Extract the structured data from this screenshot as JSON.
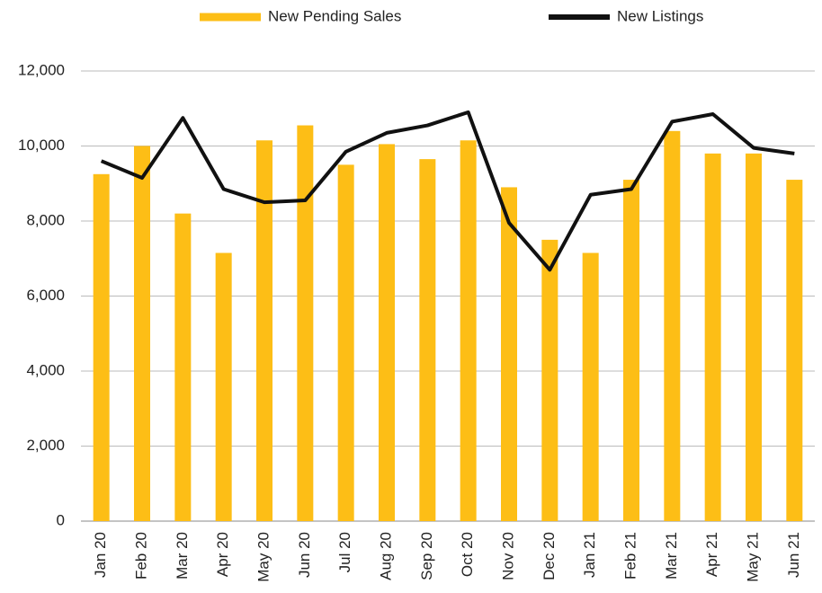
{
  "chart_data": {
    "type": "bar_line",
    "categories": [
      "Jan 20",
      "Feb 20",
      "Mar 20",
      "Apr 20",
      "May 20",
      "Jun 20",
      "Jul 20",
      "Aug 20",
      "Sep 20",
      "Oct 20",
      "Nov 20",
      "Dec 20",
      "Jan 21",
      "Feb 21",
      "Mar 21",
      "Apr 21",
      "May 21",
      "Jun 21"
    ],
    "series": [
      {
        "name": "New Pending Sales",
        "type": "bar",
        "color": "#fdbe16",
        "values": [
          9250,
          10000,
          8200,
          7150,
          10150,
          10550,
          9500,
          10050,
          9650,
          10150,
          8900,
          7500,
          7150,
          9100,
          10400,
          9800,
          9800,
          9100
        ]
      },
      {
        "name": "New Listings",
        "type": "line",
        "color": "#111111",
        "values": [
          9600,
          9150,
          10750,
          8850,
          8500,
          8550,
          9850,
          10350,
          10550,
          10900,
          7950,
          6700,
          8700,
          8850,
          10650,
          10850,
          9950,
          9800
        ]
      }
    ],
    "ylim": [
      0,
      12000
    ],
    "yticks": [
      0,
      {
        "value": 2000,
        "label": "2,000"
      },
      {
        "value": 4000,
        "label": "4,000"
      },
      {
        "value": 6000,
        "label": "6,000"
      },
      {
        "value": 8000,
        "label": "8,000"
      },
      {
        "value": 10000,
        "label": "10,000"
      },
      {
        "value": 12000,
        "label": "12,000"
      }
    ],
    "grid": true,
    "legend": "top"
  }
}
